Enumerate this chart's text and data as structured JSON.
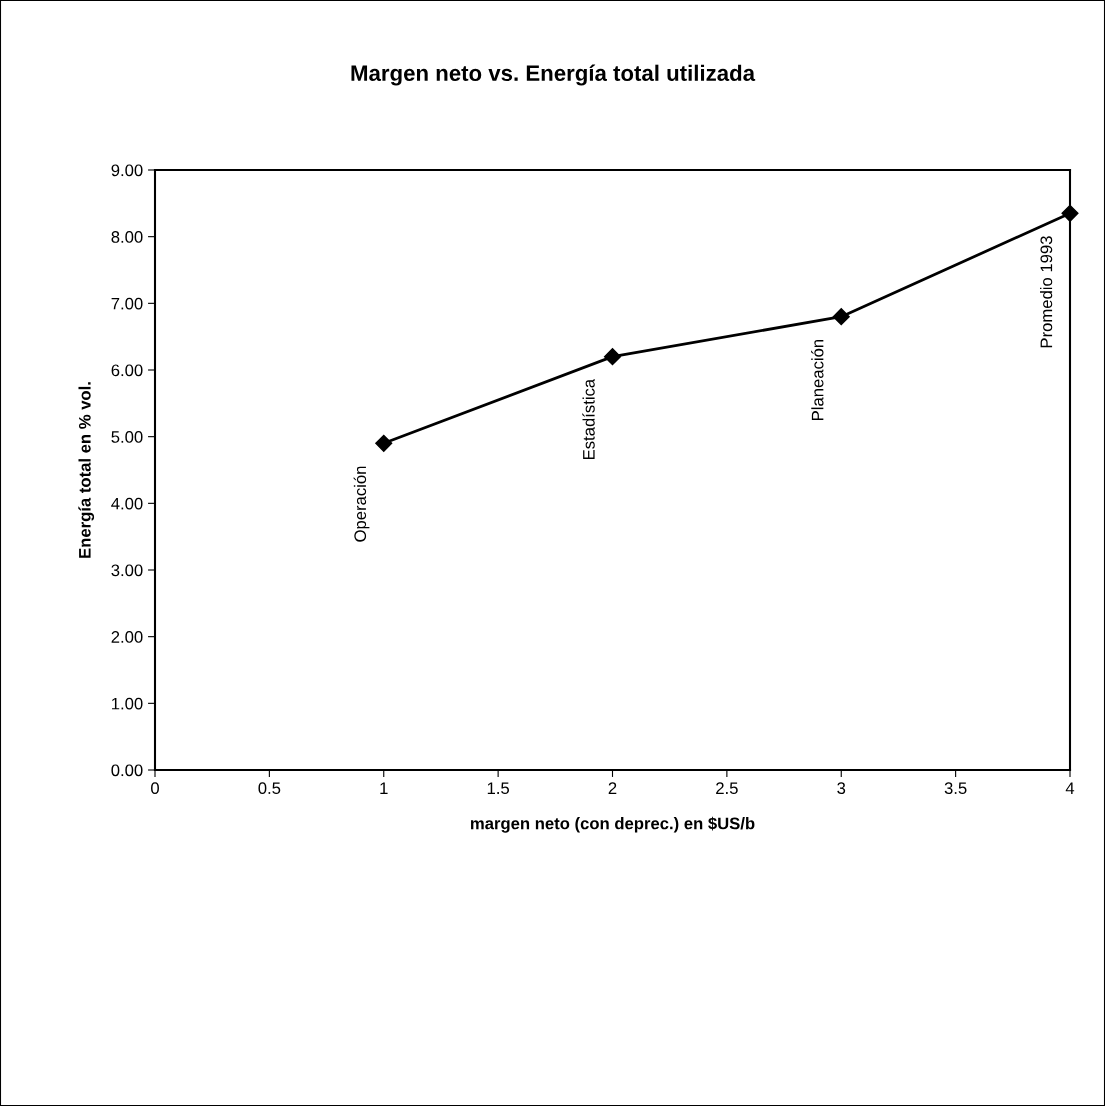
{
  "chart_data": {
    "type": "line",
    "title": "Margen neto vs. Energía total utilizada",
    "xlabel": "margen neto (con deprec.) en $US/b",
    "ylabel": "Energía total en % vol.",
    "x": [
      1,
      2,
      3,
      4
    ],
    "series": [
      {
        "color": "#000000",
        "values": [
          4.9,
          6.2,
          6.8,
          8.35
        ]
      }
    ],
    "xlim": [
      0,
      4
    ],
    "xticks": [
      0,
      0.5,
      1,
      1.5,
      2,
      2.5,
      3,
      3.5,
      4
    ],
    "ylim": [
      0,
      9
    ],
    "yticks": [
      {
        "value": 0,
        "label": "0.00"
      },
      {
        "value": 1,
        "label": "1.00"
      },
      {
        "value": 2,
        "label": "2.00"
      },
      {
        "value": 3,
        "label": "3.00"
      },
      {
        "value": 4,
        "label": "4.00"
      },
      {
        "value": 5,
        "label": "5.00"
      },
      {
        "value": 6,
        "label": "6.00"
      },
      {
        "value": 7,
        "label": "7.00"
      },
      {
        "value": 8,
        "label": "8.00"
      },
      {
        "value": 9,
        "label": "9.00"
      }
    ],
    "grid": false,
    "legend": false,
    "marker": "diamond",
    "line_style": "solid",
    "annotations": [
      {
        "text": "Operación",
        "x": 1,
        "y": 4.9
      },
      {
        "text": "Estadística",
        "x": 2,
        "y": 6.2
      },
      {
        "text": "Planeación",
        "x": 3,
        "y": 6.8
      },
      {
        "text": "Promedio 1993",
        "x": 4,
        "y": 8.35
      }
    ]
  }
}
